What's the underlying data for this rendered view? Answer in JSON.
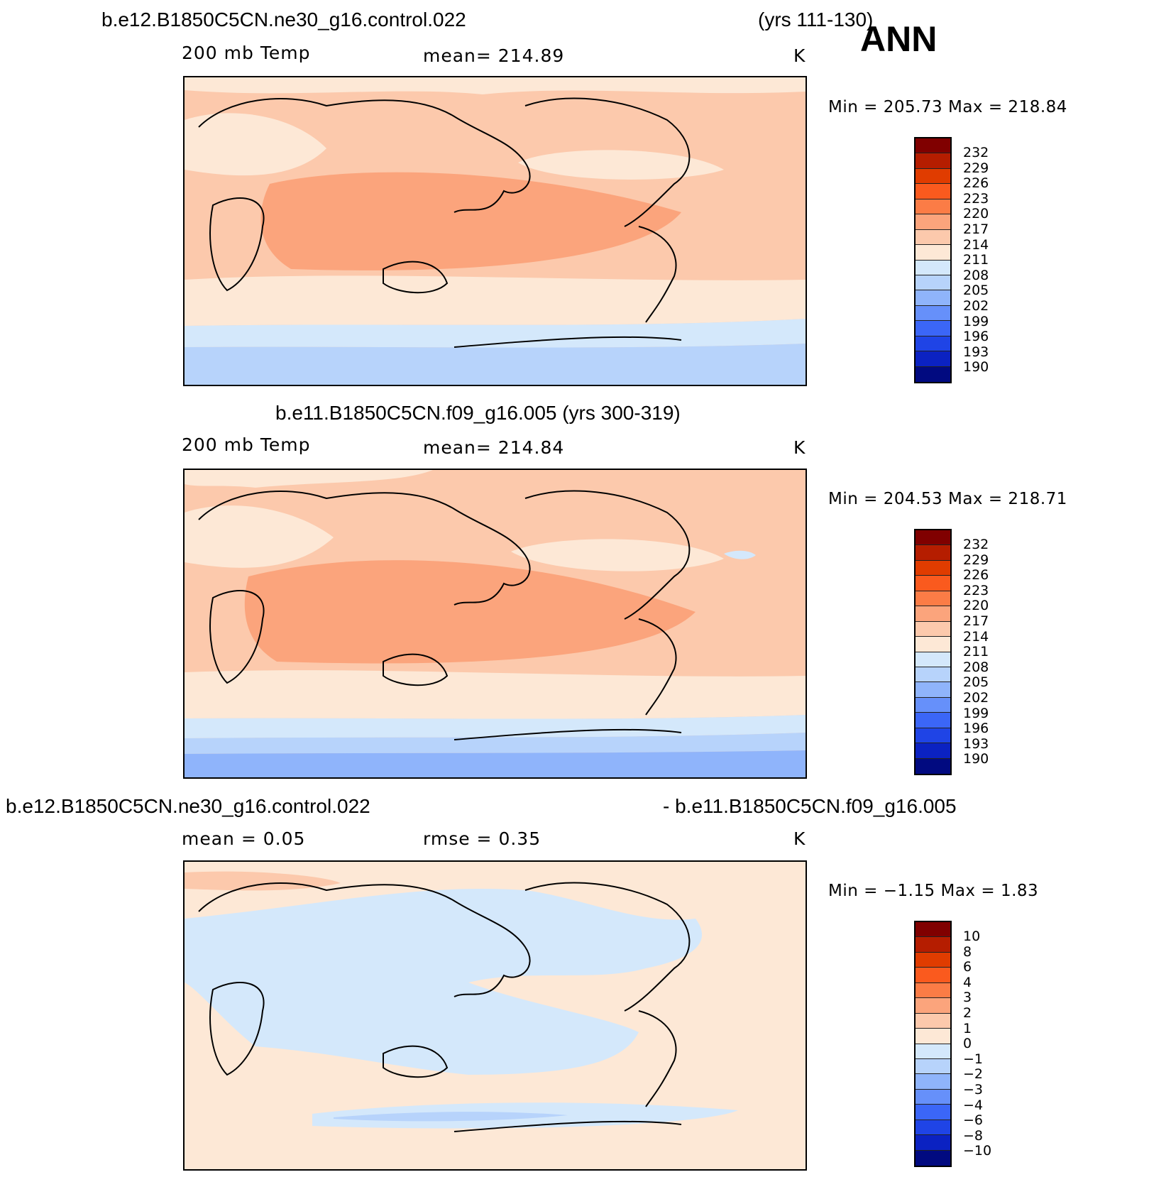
{
  "figure": {
    "season": "ANN"
  },
  "panels": [
    {
      "title_left": "b.e12.B1850C5CN.ne30_g16.control.022",
      "title_right": "(yrs 111-130)",
      "variable": "200 mb Temp",
      "stat": "mean=  214.89",
      "units": "K",
      "minmax": "Min  =  205.73  Max  =  218.84",
      "colorbar_labels": [
        "232",
        "229",
        "226",
        "223",
        "220",
        "217",
        "214",
        "211",
        "208",
        "205",
        "202",
        "199",
        "196",
        "193",
        "190"
      ]
    },
    {
      "title_left": "b.e11.B1850C5CN.f09_g16.005 (yrs 300-319)",
      "variable": "200 mb Temp",
      "stat": "mean=  214.84",
      "units": "K",
      "minmax": "Min  =  204.53  Max  =  218.71",
      "colorbar_labels": [
        "232",
        "229",
        "226",
        "223",
        "220",
        "217",
        "214",
        "211",
        "208",
        "205",
        "202",
        "199",
        "196",
        "193",
        "190"
      ]
    },
    {
      "title_left": "b.e12.B1850C5CN.ne30_g16.control.022",
      "title_right": "- b.e11.B1850C5CN.f09_g16.005",
      "stat_mean": "mean  =     0.05",
      "stat_rmse": "rmse  =     0.35",
      "units": "K",
      "minmax": "Min  =    −1.15  Max  =     1.83",
      "colorbar_labels": [
        "10",
        "8",
        "6",
        "4",
        "3",
        "2",
        "1",
        "0",
        "−1",
        "−2",
        "−3",
        "−4",
        "−6",
        "−8",
        "−10"
      ]
    }
  ],
  "colors": {
    "scale": [
      "#800000",
      "#b51d00",
      "#e03c00",
      "#fa5a1e",
      "#fb7c46",
      "#fba47c",
      "#fcc9ac",
      "#fde8d6",
      "#d4e8fb",
      "#b7d3fb",
      "#8fb4fb",
      "#6690fa",
      "#3b66f7",
      "#1f44e6",
      "#0b22c2",
      "#010a80"
    ]
  },
  "chart_data": [
    {
      "type": "heatmap",
      "title": "200 mb Temp",
      "units": "K",
      "mean": 214.89,
      "min": 205.73,
      "max": 218.84,
      "contour_levels": [
        190,
        193,
        196,
        199,
        202,
        205,
        208,
        211,
        214,
        217,
        220,
        223,
        226,
        229,
        232
      ]
    },
    {
      "type": "heatmap",
      "title": "200 mb Temp",
      "units": "K",
      "mean": 214.84,
      "min": 204.53,
      "max": 218.71,
      "contour_levels": [
        190,
        193,
        196,
        199,
        202,
        205,
        208,
        211,
        214,
        217,
        220,
        223,
        226,
        229,
        232
      ]
    },
    {
      "type": "heatmap",
      "units": "K",
      "mean": 0.05,
      "rmse": 0.35,
      "min": -1.15,
      "max": 1.83,
      "contour_levels": [
        -10,
        -8,
        -6,
        -4,
        -3,
        -2,
        -1,
        0,
        1,
        2,
        3,
        4,
        6,
        8,
        10
      ]
    }
  ]
}
